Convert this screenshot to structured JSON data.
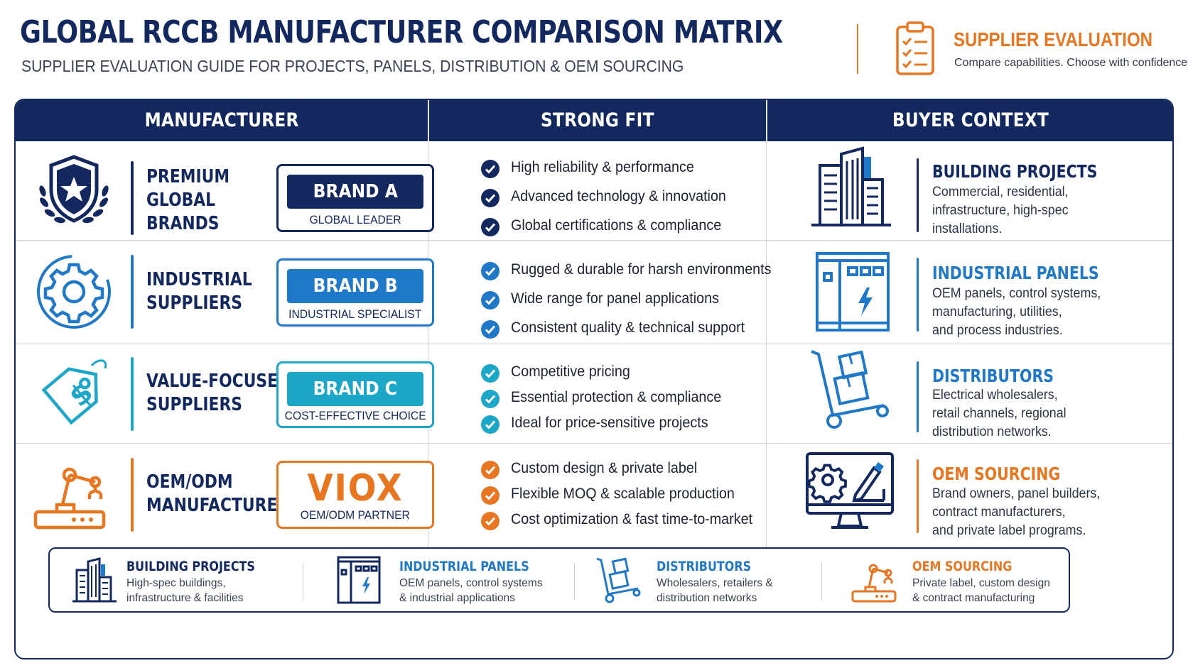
{
  "header": {
    "title": "GLOBAL RCCB MANUFACTURER COMPARISON MATRIX",
    "subtitle": "SUPPLIER EVALUATION GUIDE FOR PROJECTS, PANELS, DISTRIBUTION & OEM SOURCING",
    "badge_icon": "clipboard-checklist-icon",
    "badge_title": "SUPPLIER EVALUATION",
    "badge_subtitle": "Compare capabilities. Choose with confidence."
  },
  "columns": [
    "MANUFACTURER",
    "STRONG FIT",
    "BUYER CONTEXT"
  ],
  "colors": {
    "navy": "#13285e",
    "blue": "#2078c8",
    "teal": "#1ca7c9",
    "orange": "#e8751f"
  },
  "rows": [
    {
      "icon": "shield-star-laurel-icon",
      "label": [
        "PREMIUM",
        "GLOBAL",
        "BRANDS"
      ],
      "brand": "BRAND A",
      "brand_tag": "GLOBAL LEADER",
      "fits": [
        "High reliability & performance",
        "Advanced technology & innovation",
        "Global certifications & compliance"
      ],
      "context_icon": "buildings-icon",
      "context_title": "BUILDING PROJECTS",
      "context_text": [
        "Commercial, residential,",
        "infrastructure, high-spec",
        "installations."
      ]
    },
    {
      "icon": "gear-icon",
      "label": [
        "INDUSTRIAL",
        "SUPPLIERS"
      ],
      "brand": "BRAND B",
      "brand_tag": "INDUSTRIAL SPECIALIST",
      "fits": [
        "Rugged & durable for harsh environments",
        "Wide range for panel applications",
        "Consistent quality & technical support"
      ],
      "context_icon": "electrical-panel-icon",
      "context_title": "INDUSTRIAL PANELS",
      "context_text": [
        "OEM panels, control systems,",
        "manufacturing, utilities,",
        "and process industries."
      ]
    },
    {
      "icon": "price-tag-dollar-icon",
      "label": [
        "VALUE-FOCUSED",
        "SUPPLIERS"
      ],
      "brand": "BRAND C",
      "brand_tag": "COST-EFFECTIVE CHOICE",
      "fits": [
        "Competitive pricing",
        "Essential protection & compliance",
        "Ideal for price-sensitive projects"
      ],
      "context_icon": "hand-truck-boxes-icon",
      "context_title": "DISTRIBUTORS",
      "context_text": [
        "Electrical wholesalers,",
        "retail channels, regional",
        "distribution networks."
      ]
    },
    {
      "icon": "robot-arm-icon",
      "label": [
        "OEM/ODM",
        "MANUFACTURERS"
      ],
      "brand": "VIOX",
      "brand_tag": "OEM/ODM PARTNER",
      "fits": [
        "Custom design & private label",
        "Flexible MOQ & scalable production",
        "Cost optimization & fast time-to-market"
      ],
      "context_icon": "monitor-gear-design-icon",
      "context_title": "OEM SOURCING",
      "context_text": [
        "Brand owners, panel builders,",
        "contract manufacturers,",
        "and private label programs."
      ]
    }
  ],
  "strip": [
    {
      "icon": "buildings-icon",
      "title": "BUILDING PROJECTS",
      "text": [
        "High-spec buildings,",
        "infrastructure & facilities"
      ]
    },
    {
      "icon": "electrical-panel-icon",
      "title": "INDUSTRIAL PANELS",
      "text": [
        "OEM panels, control systems",
        "& industrial applications"
      ]
    },
    {
      "icon": "hand-truck-boxes-icon",
      "title": "DISTRIBUTORS",
      "text": [
        "Wholesalers, retailers &",
        "distribution networks"
      ]
    },
    {
      "icon": "robot-arm-icon",
      "title": "OEM SOURCING",
      "text": [
        "Private label, custom design",
        "& contract manufacturing"
      ]
    }
  ]
}
